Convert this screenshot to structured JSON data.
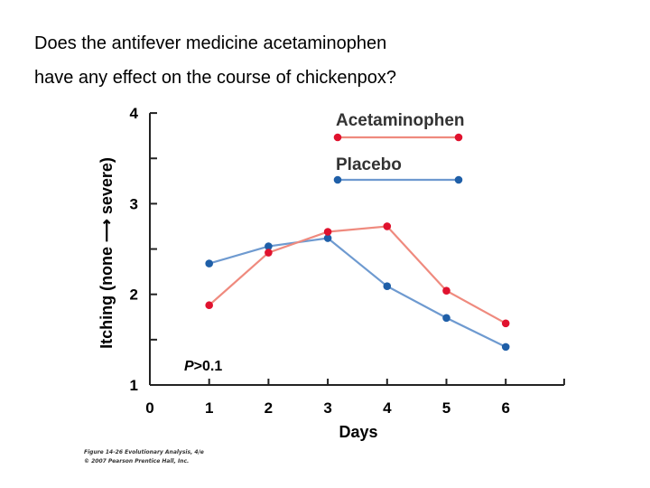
{
  "question": {
    "line1": "Does the antifever medicine acetaminophen",
    "line2": "have any effect on the course of chickenpox?"
  },
  "credit": {
    "line1": "Figure 14-26 Evolutionary Analysis, 4/e",
    "line2": "© 2007 Pearson Prentice Hall, Inc."
  },
  "chart_data": {
    "type": "line",
    "title": "",
    "xlabel": "Days",
    "ylabel": "Itching (none ⟶ severe)",
    "xlim": [
      0,
      7
    ],
    "ylim": [
      1,
      4
    ],
    "x_ticks": [
      0,
      1,
      2,
      3,
      4,
      5,
      6
    ],
    "y_ticks": [
      1,
      2,
      3,
      4
    ],
    "x": [
      1,
      2,
      3,
      4,
      5,
      6
    ],
    "series": [
      {
        "name": "Acetaminophen",
        "color": "#e0122e",
        "line_color": "#ef8a7e",
        "values": [
          1.88,
          2.46,
          2.69,
          2.75,
          2.04,
          1.68
        ]
      },
      {
        "name": "Placebo",
        "color": "#1f5fa8",
        "line_color": "#6e9ad0",
        "values": [
          2.34,
          2.53,
          2.62,
          2.09,
          1.74,
          1.42
        ]
      }
    ],
    "annotation": "P>0.1",
    "legend_position": "top-right",
    "grid": false
  }
}
